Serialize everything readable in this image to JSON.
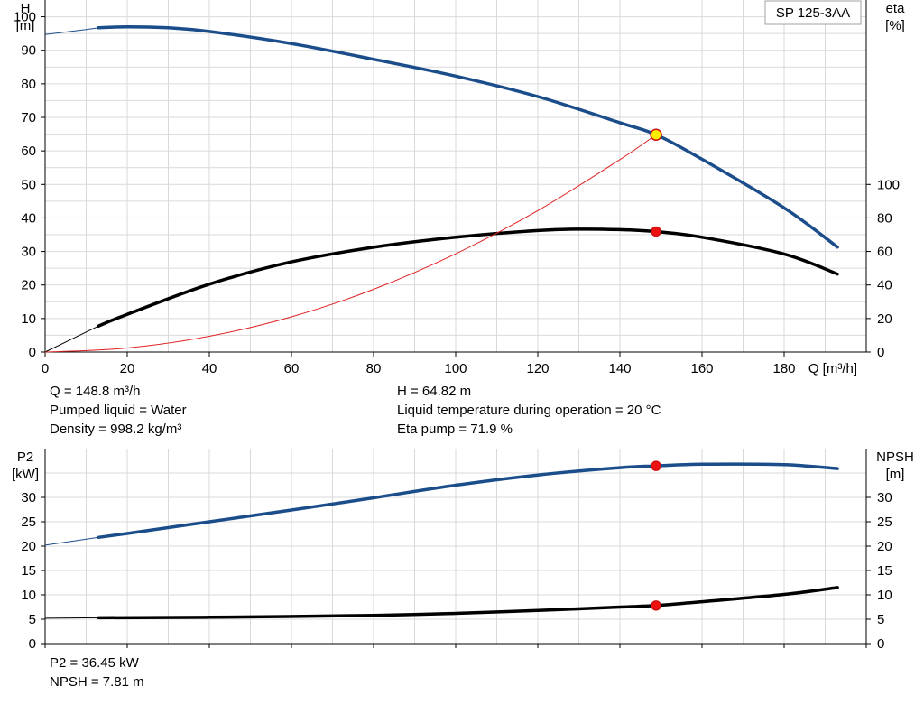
{
  "model_label": "SP 125-3AA",
  "chart_data": [
    {
      "type": "line",
      "name": "pump-curves",
      "xlabel": "Q [m³/h]",
      "ylabel_left": [
        "H",
        "[m]"
      ],
      "ylabel_right": [
        "eta",
        "[%]"
      ],
      "xlim": [
        0,
        200
      ],
      "ylim_left": [
        0,
        105
      ],
      "ylim_right": [
        0,
        210
      ],
      "x_ticks": [
        0,
        20,
        40,
        60,
        80,
        100,
        120,
        140,
        160,
        180
      ],
      "y_ticks_left": [
        0,
        10,
        20,
        30,
        40,
        50,
        60,
        70,
        80,
        90,
        100
      ],
      "y_ticks_right": [
        0,
        20,
        40,
        60,
        80,
        100
      ],
      "grid": true,
      "series": [
        {
          "axis": "left",
          "color": "#1a4d8a",
          "x": [
            0,
            10,
            13,
            20,
            30,
            40,
            60,
            80,
            100,
            120,
            140,
            148.8,
            160,
            180,
            193
          ],
          "y": [
            94.7,
            96.2,
            96.7,
            97.0,
            96.7,
            95.6,
            92.0,
            87.3,
            82.3,
            76.2,
            68.4,
            64.82,
            57.5,
            43.0,
            31.3
          ]
        },
        {
          "axis": "right",
          "color": "#000000",
          "x": [
            0,
            13,
            20,
            40,
            60,
            80,
            100,
            120,
            130,
            140,
            148.8,
            160,
            180,
            193
          ],
          "y": [
            0,
            15.5,
            22.5,
            40.5,
            53.8,
            62.5,
            68.5,
            72.5,
            73.3,
            73.0,
            71.9,
            68.5,
            58.5,
            46.5
          ]
        },
        {
          "axis": "left",
          "color": "#e02020",
          "style": "thin",
          "x": [
            0,
            20,
            40,
            60,
            80,
            100,
            120,
            140,
            148.8
          ],
          "y": [
            0,
            1.2,
            4.7,
            10.5,
            18.7,
            29.3,
            42.2,
            57.4,
            64.82
          ]
        }
      ],
      "markers": [
        {
          "x": 148.8,
          "y": 64.82,
          "axis": "left",
          "fill": "#ffee00",
          "stroke": "#d01010"
        },
        {
          "x": 148.8,
          "y": 71.9,
          "axis": "right",
          "fill": "#ee1111",
          "stroke": "#d01010"
        }
      ]
    },
    {
      "type": "line",
      "name": "power-npsh",
      "ylabel_left": [
        "P2",
        "[kW]"
      ],
      "ylabel_right": [
        "NPSH",
        "[m]"
      ],
      "xlim": [
        0,
        200
      ],
      "ylim_left": [
        0,
        40
      ],
      "ylim_right": [
        0,
        40
      ],
      "y_ticks_left": [
        0,
        5,
        10,
        15,
        20,
        25,
        30
      ],
      "y_ticks_right": [
        0,
        5,
        10,
        15,
        20,
        25,
        30
      ],
      "grid": true,
      "series": [
        {
          "axis": "left",
          "color": "#1a4d8a",
          "x": [
            0,
            13,
            20,
            40,
            60,
            80,
            100,
            120,
            140,
            148.8,
            160,
            180,
            193
          ],
          "y": [
            20.2,
            21.8,
            22.6,
            25.0,
            27.4,
            29.9,
            32.5,
            34.6,
            36.1,
            36.45,
            36.8,
            36.7,
            35.9
          ]
        },
        {
          "axis": "right",
          "color": "#000000",
          "x": [
            0,
            13,
            40,
            80,
            100,
            120,
            140,
            148.8,
            160,
            180,
            193
          ],
          "y": [
            5.2,
            5.3,
            5.4,
            5.8,
            6.2,
            6.8,
            7.5,
            7.81,
            8.6,
            10.1,
            11.5
          ]
        }
      ],
      "markers": [
        {
          "x": 148.8,
          "y": 36.45,
          "axis": "left",
          "fill": "#ee1111",
          "stroke": "#d01010"
        },
        {
          "x": 148.8,
          "y": 7.81,
          "axis": "right",
          "fill": "#ee1111",
          "stroke": "#d01010"
        }
      ]
    }
  ],
  "info_top_left": [
    "Q = 148.8 m³/h",
    "Pumped liquid = Water",
    "Density = 998.2 kg/m³"
  ],
  "info_top_right": [
    "H = 64.82 m",
    "Liquid temperature during operation = 20 °C",
    "Eta pump = 71.9 %"
  ],
  "info_bottom": [
    "P2 = 36.45 kW",
    "NPSH = 7.81 m"
  ]
}
